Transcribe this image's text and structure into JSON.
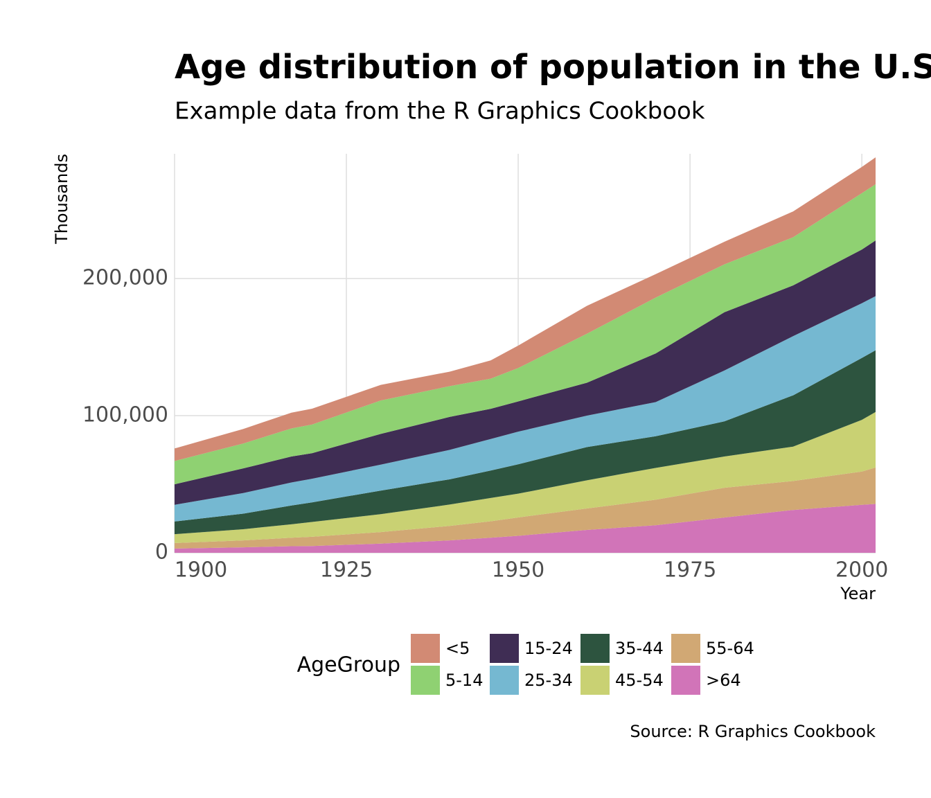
{
  "chart_data": {
    "type": "area",
    "stacked": true,
    "title": "Age distribution of population in the U.S",
    "subtitle": "Example data from the R Graphics Cookbook",
    "x_label": "Year",
    "y_label": "Thousands",
    "caption": "Source: R Graphics Cookbook",
    "legend_title": "AgeGroup",
    "x": [
      1900,
      1910,
      1917,
      1920,
      1930,
      1940,
      1946,
      1950,
      1960,
      1970,
      1980,
      1990,
      2000,
      2002
    ],
    "series": [
      {
        "name": "<5",
        "color": "#d28a74",
        "values": [
          9181,
          10631,
          11500,
          11573,
          11372,
          10579,
          13300,
          16410,
          20341,
          17148,
          16458,
          18856,
          19176,
          19610
        ]
      },
      {
        "name": "5-14",
        "color": "#8fd172",
        "values": [
          16966,
          18125,
          20500,
          20889,
          24359,
          22428,
          22000,
          24319,
          35735,
          40746,
          34942,
          35089,
          41078,
          41000
        ]
      },
      {
        "name": "15-24",
        "color": "#3f2d54",
        "values": [
          14951,
          18009,
          18900,
          18645,
          22422,
          24033,
          22000,
          22098,
          24020,
          35441,
          42487,
          37013,
          39184,
          40600
        ]
      },
      {
        "name": "25-34",
        "color": "#75b8d1",
        "values": [
          12161,
          15012,
          16800,
          17230,
          18935,
          21446,
          23000,
          23759,
          22919,
          24907,
          37082,
          43161,
          39892,
          39500
        ]
      },
      {
        "name": "35-44",
        "color": "#2d543f",
        "values": [
          9273,
          11350,
          13700,
          14262,
          17184,
          18422,
          20000,
          21450,
          24221,
          23088,
          25635,
          37435,
          45149,
          45000
        ]
      },
      {
        "name": "45-54",
        "color": "#c9d173",
        "values": [
          6437,
          8154,
          9800,
          10791,
          13083,
          15555,
          17000,
          17343,
          20578,
          23220,
          22800,
          25062,
          37678,
          40500
        ]
      },
      {
        "name": "55-64",
        "color": "#d1a874",
        "values": [
          4026,
          5053,
          6200,
          6779,
          8389,
          10572,
          12000,
          13370,
          15627,
          18590,
          21703,
          21116,
          24275,
          26600
        ]
      },
      {
        "name": ">64",
        "color": "#d174b8",
        "values": [
          3099,
          3986,
          4800,
          4933,
          6706,
          9031,
          11000,
          12397,
          16675,
          20107,
          25707,
          31224,
          34992,
          35600
        ]
      }
    ],
    "xlim": [
      1900,
      2002
    ],
    "xticks": [
      1900,
      1925,
      1950,
      1975,
      2000
    ],
    "ylim": [
      0,
      291000
    ],
    "yticks": [
      0,
      {
        "value": 100000,
        "label": "100,000"
      },
      {
        "value": 200000,
        "label": "200,000"
      }
    ],
    "grid": true,
    "legend_position": "bottom"
  }
}
